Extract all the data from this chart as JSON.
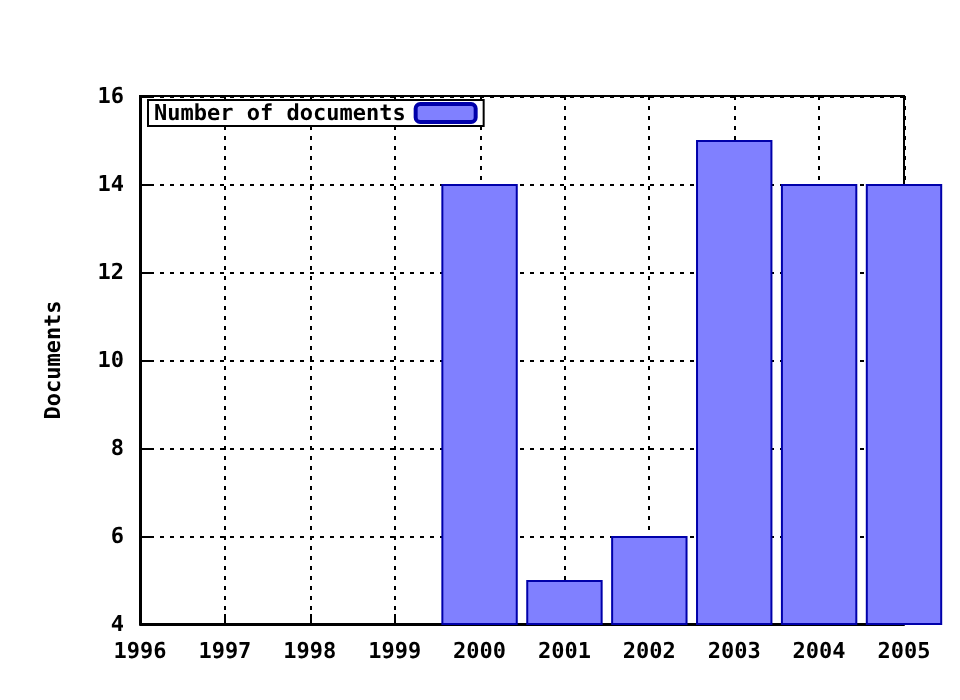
{
  "chart_data": {
    "type": "bar",
    "ylabel": "Documents",
    "x": [
      2000,
      2001,
      2002,
      2003,
      2004,
      2005
    ],
    "series": [
      {
        "name": "Number of documents",
        "color": "#8080ff",
        "values": [
          14,
          5,
          6,
          15,
          14,
          14
        ]
      }
    ],
    "xlim": [
      1996,
      2005
    ],
    "xticks": [
      1996,
      1997,
      1998,
      1999,
      2000,
      2001,
      2002,
      2003,
      2004,
      2005
    ],
    "ylim": [
      4,
      16
    ],
    "yticks": [
      4,
      6,
      8,
      10,
      12,
      14,
      16
    ],
    "grid": true,
    "legend": "top left"
  }
}
